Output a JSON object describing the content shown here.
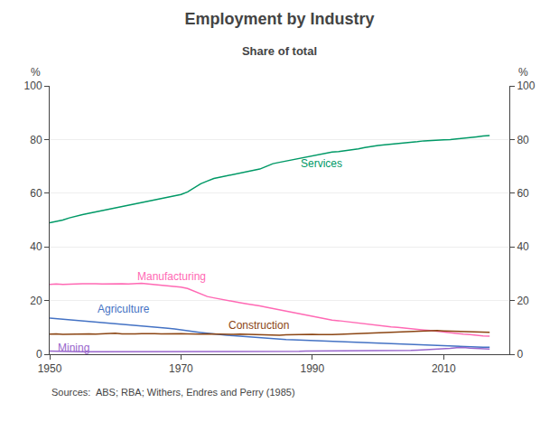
{
  "chart_data": {
    "type": "line",
    "title": "Employment by Industry",
    "subtitle": "Share of total",
    "ylabel": "%",
    "y2label": "%",
    "source": "Sources:  ABS; RBA; Withers, Endres and Perry (1985)",
    "x": [
      1950,
      1951,
      1952,
      1953,
      1954,
      1955,
      1956,
      1957,
      1958,
      1959,
      1960,
      1961,
      1962,
      1963,
      1964,
      1965,
      1966,
      1967,
      1968,
      1969,
      1970,
      1971,
      1972,
      1973,
      1974,
      1975,
      1976,
      1977,
      1978,
      1979,
      1980,
      1981,
      1982,
      1983,
      1984,
      1985,
      1986,
      1987,
      1988,
      1989,
      1990,
      1991,
      1992,
      1993,
      1994,
      1995,
      1996,
      1997,
      1998,
      1999,
      2000,
      2001,
      2002,
      2003,
      2004,
      2005,
      2006,
      2007,
      2008,
      2009,
      2010,
      2011,
      2012,
      2013,
      2014,
      2015,
      2016,
      2017
    ],
    "series": [
      {
        "name": "Services",
        "color": "#009966",
        "values": [
          49.0,
          49.5,
          50.0,
          50.8,
          51.5,
          52.0,
          52.5,
          53.0,
          53.5,
          54.0,
          54.5,
          55.0,
          55.5,
          56.0,
          56.5,
          57.0,
          57.5,
          58.0,
          58.5,
          59.0,
          59.5,
          60.5,
          62.0,
          63.5,
          64.5,
          65.5,
          66.0,
          66.5,
          67.0,
          67.5,
          68.0,
          68.5,
          69.0,
          70.0,
          71.0,
          71.5,
          72.0,
          72.5,
          73.0,
          73.5,
          74.0,
          74.5,
          75.0,
          75.3,
          75.5,
          75.8,
          76.0,
          76.5,
          77.0,
          77.5,
          77.8,
          78.0,
          78.2,
          78.5,
          78.7,
          79.0,
          79.2,
          79.5,
          79.7,
          79.8,
          79.9,
          80.0,
          80.2,
          80.5,
          80.7,
          81.0,
          81.3,
          81.5
        ]
      },
      {
        "name": "Manufacturing",
        "color": "#ff69b4",
        "values": [
          26.0,
          26.2,
          26.0,
          26.0,
          26.2,
          26.3,
          26.4,
          26.3,
          26.2,
          26.3,
          26.4,
          26.3,
          26.2,
          26.3,
          26.4,
          26.2,
          26.0,
          25.8,
          25.5,
          25.3,
          25.0,
          24.5,
          23.5,
          22.5,
          21.5,
          21.0,
          20.5,
          20.0,
          19.5,
          19.2,
          18.8,
          18.5,
          18.0,
          17.5,
          17.0,
          16.5,
          16.0,
          15.5,
          15.0,
          14.5,
          14.0,
          13.5,
          13.0,
          12.7,
          12.5,
          12.2,
          12.0,
          11.5,
          11.2,
          11.0,
          10.7,
          10.5,
          10.2,
          10.0,
          9.7,
          9.5,
          9.2,
          9.0,
          8.8,
          8.5,
          8.3,
          8.0,
          7.8,
          7.5,
          7.3,
          7.0,
          6.8,
          6.7
        ]
      },
      {
        "name": "Agriculture",
        "color": "#4472c4",
        "values": [
          13.5,
          13.3,
          13.1,
          12.9,
          12.7,
          12.5,
          12.3,
          12.1,
          11.9,
          11.7,
          11.5,
          11.3,
          11.1,
          10.9,
          10.7,
          10.5,
          10.3,
          10.0,
          9.7,
          9.4,
          9.0,
          8.7,
          8.4,
          8.1,
          7.8,
          7.5,
          7.3,
          7.1,
          6.9,
          6.7,
          6.5,
          6.3,
          6.1,
          6.0,
          5.8,
          5.7,
          5.5,
          5.4,
          5.3,
          5.2,
          5.1,
          5.0,
          4.9,
          4.8,
          4.7,
          4.6,
          4.5,
          4.4,
          4.3,
          4.2,
          4.1,
          4.0,
          3.9,
          3.8,
          3.7,
          3.5,
          3.4,
          3.3,
          3.2,
          3.1,
          3.0,
          2.9,
          2.8,
          2.7,
          2.7,
          2.6,
          2.6,
          2.6
        ]
      },
      {
        "name": "Construction",
        "color": "#8B4513",
        "values": [
          7.5,
          7.6,
          7.4,
          7.5,
          7.6,
          7.7,
          7.6,
          7.5,
          7.6,
          7.7,
          7.8,
          7.6,
          7.5,
          7.6,
          7.7,
          7.8,
          7.7,
          7.6,
          7.7,
          7.8,
          7.7,
          7.6,
          7.5,
          7.5,
          7.6,
          7.5,
          7.4,
          7.3,
          7.4,
          7.5,
          7.4,
          7.5,
          7.4,
          7.3,
          7.2,
          7.1,
          7.2,
          7.3,
          7.4,
          7.5,
          7.4,
          7.3,
          7.2,
          7.3,
          7.4,
          7.5,
          7.6,
          7.7,
          7.8,
          7.9,
          8.0,
          8.1,
          8.2,
          8.3,
          8.5,
          8.6,
          8.7,
          8.8,
          8.9,
          8.8,
          8.7,
          8.6,
          8.5,
          8.4,
          8.3,
          8.2,
          8.1,
          8.2
        ]
      },
      {
        "name": "Mining",
        "color": "#9966cc",
        "values": [
          1.2,
          1.1,
          1.0,
          1.0,
          0.9,
          0.9,
          0.9,
          0.9,
          0.9,
          0.9,
          0.9,
          0.9,
          0.9,
          0.9,
          0.9,
          0.9,
          0.9,
          0.9,
          1.0,
          1.0,
          1.1,
          1.1,
          1.1,
          1.1,
          1.1,
          1.1,
          1.1,
          1.1,
          1.1,
          1.1,
          1.1,
          1.1,
          1.1,
          1.1,
          1.1,
          1.1,
          1.1,
          1.1,
          1.1,
          1.2,
          1.2,
          1.2,
          1.2,
          1.2,
          1.2,
          1.2,
          1.2,
          1.2,
          1.2,
          1.2,
          1.2,
          1.2,
          1.2,
          1.3,
          1.3,
          1.4,
          1.5,
          1.6,
          1.7,
          1.8,
          2.0,
          2.2,
          2.4,
          2.5,
          2.3,
          2.1,
          2.0,
          1.9
        ]
      }
    ],
    "annotations": [
      {
        "text": "Services",
        "x": 1988,
        "y": 71.0,
        "color": "#009966"
      },
      {
        "text": "Manufacturing",
        "x": 1963,
        "y": 29.0,
        "color": "#ff69b4"
      },
      {
        "text": "Agriculture",
        "x": 1957,
        "y": 17.0,
        "color": "#4472c4"
      },
      {
        "text": "Construction",
        "x": 1977,
        "y": 10.8,
        "color": "#8B4513"
      },
      {
        "text": "Mining",
        "x": 1951,
        "y": 2.5,
        "color": "#9966cc"
      }
    ],
    "xlim": [
      1950,
      2020
    ],
    "xticks": [
      1950,
      1970,
      1990,
      2010
    ],
    "ylim": [
      0,
      100
    ],
    "yticks": [
      0,
      20,
      40,
      60,
      80,
      100
    ],
    "y2lim": [
      0,
      100
    ],
    "y2ticks": [
      0,
      20,
      40,
      60,
      80,
      100
    ],
    "grid": "y"
  }
}
